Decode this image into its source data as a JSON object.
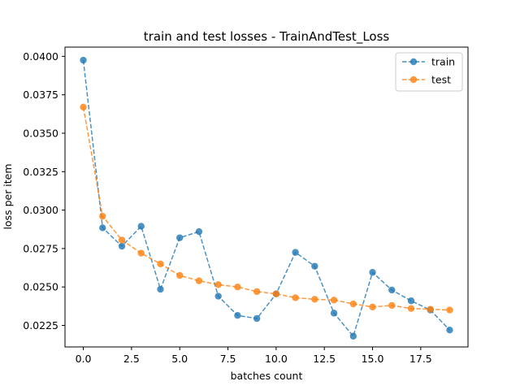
{
  "chart_data": {
    "type": "line",
    "title": "train and test losses - TrainAndTest_Loss",
    "xlabel": "batches count",
    "ylabel": "loss per item",
    "xlim": [
      -0.95,
      19.95
    ],
    "ylim": [
      0.0211,
      0.0406
    ],
    "xticks": [
      0.0,
      2.5,
      5.0,
      7.5,
      10.0,
      12.5,
      15.0,
      17.5
    ],
    "xtick_labels": [
      "0.0",
      "2.5",
      "5.0",
      "7.5",
      "10.0",
      "12.5",
      "15.0",
      "17.5"
    ],
    "yticks": [
      0.0225,
      0.025,
      0.0275,
      0.03,
      0.0325,
      0.035,
      0.0375,
      0.04
    ],
    "ytick_labels": [
      "0.0225",
      "0.0250",
      "0.0275",
      "0.0300",
      "0.0325",
      "0.0350",
      "0.0375",
      "0.0400"
    ],
    "grid": false,
    "legend_position": "top-right",
    "x": [
      0,
      1,
      2,
      3,
      4,
      5,
      6,
      7,
      8,
      9,
      10,
      11,
      12,
      13,
      14,
      15,
      16,
      17,
      18,
      19
    ],
    "series": [
      {
        "name": "train",
        "color": "#1f77b4",
        "values": [
          0.03975,
          0.02885,
          0.02765,
          0.02895,
          0.02485,
          0.0282,
          0.0286,
          0.0244,
          0.02315,
          0.02295,
          0.02455,
          0.02725,
          0.02635,
          0.0233,
          0.0218,
          0.02595,
          0.0248,
          0.0241,
          0.0235,
          0.0222
        ]
      },
      {
        "name": "test",
        "color": "#ff7f0e",
        "values": [
          0.0367,
          0.0296,
          0.02805,
          0.0272,
          0.0265,
          0.02575,
          0.0254,
          0.02515,
          0.025,
          0.0247,
          0.02455,
          0.0243,
          0.0242,
          0.02415,
          0.0239,
          0.0237,
          0.0238,
          0.0236,
          0.02355,
          0.0235
        ]
      }
    ]
  }
}
